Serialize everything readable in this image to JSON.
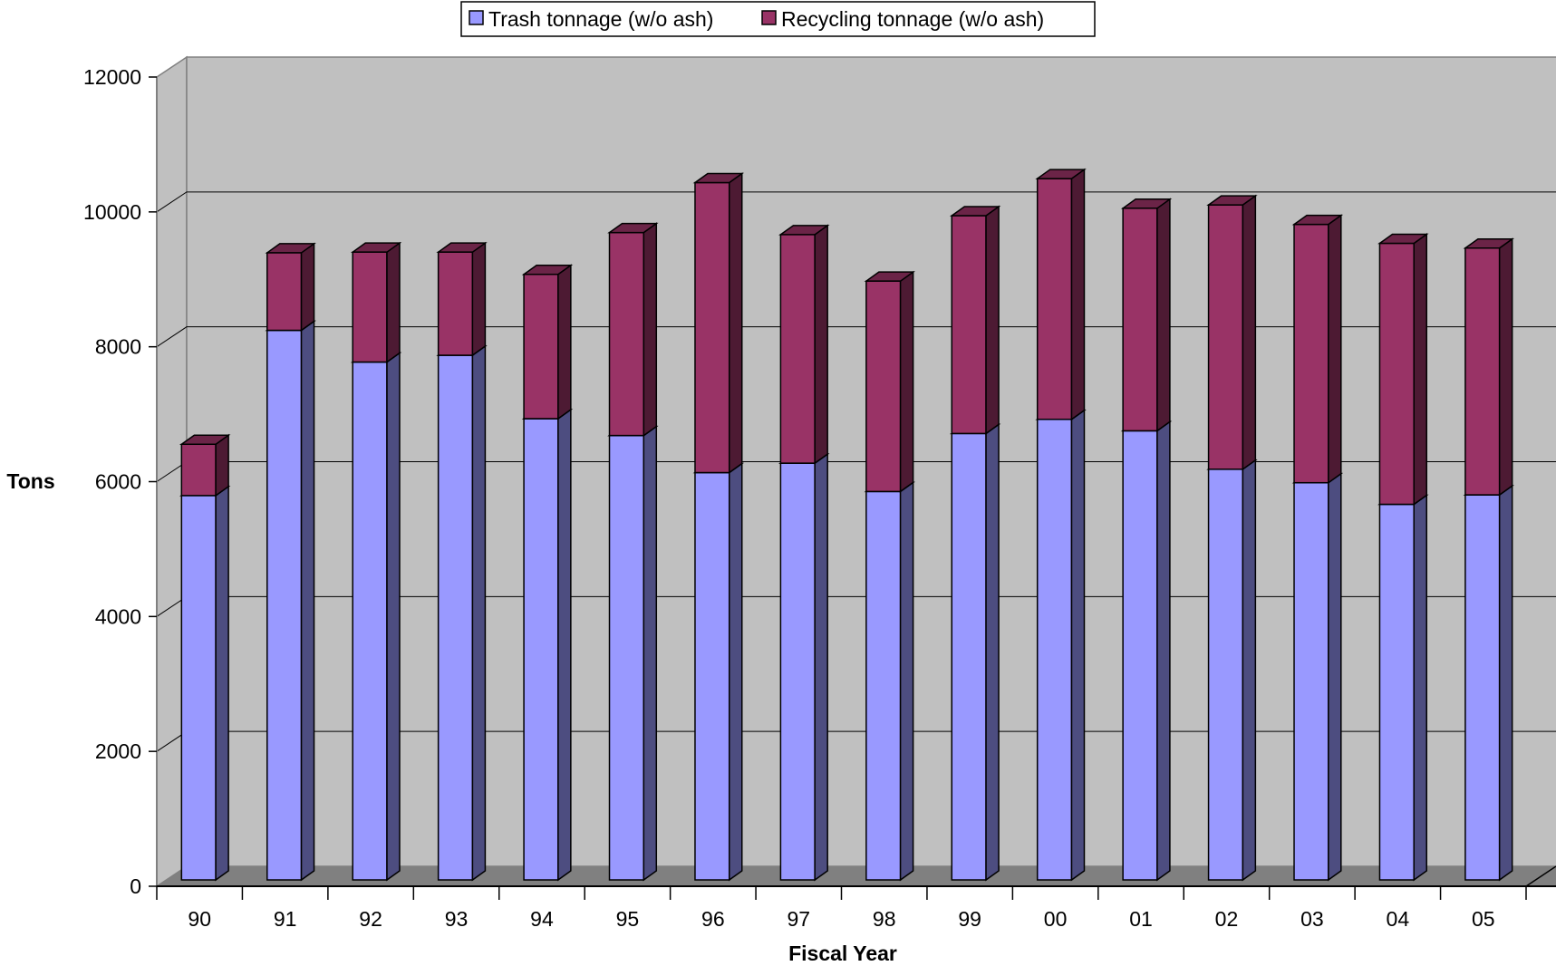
{
  "chart_data": {
    "type": "bar",
    "stacked": true,
    "three_d": true,
    "categories": [
      "90",
      "91",
      "92",
      "93",
      "94",
      "95",
      "96",
      "97",
      "98",
      "99",
      "00",
      "01",
      "02",
      "03",
      "04",
      "05"
    ],
    "series": [
      {
        "name": "Trash tonnage (w/o ash)",
        "color": "#9999FF",
        "values": [
          5700,
          8150,
          7680,
          7780,
          6840,
          6590,
          6040,
          6180,
          5760,
          6620,
          6830,
          6660,
          6090,
          5890,
          5570,
          5710
        ]
      },
      {
        "name": "Recycling tonnage (w/o ash)",
        "color": "#993366",
        "values": [
          760,
          1150,
          1630,
          1530,
          2140,
          3010,
          4300,
          3390,
          3120,
          3230,
          3570,
          3300,
          3920,
          3830,
          3870,
          3660
        ]
      }
    ],
    "title": "",
    "xlabel": "Fiscal Year",
    "ylabel": "Tons",
    "ylim": [
      0,
      12000
    ],
    "yticks": [
      0,
      2000,
      4000,
      6000,
      8000,
      10000,
      12000
    ],
    "grid": true,
    "legend": "top-center",
    "colors": {
      "wall": "#C0C0C0",
      "floor": "#808080",
      "gridline": "#000000"
    }
  }
}
